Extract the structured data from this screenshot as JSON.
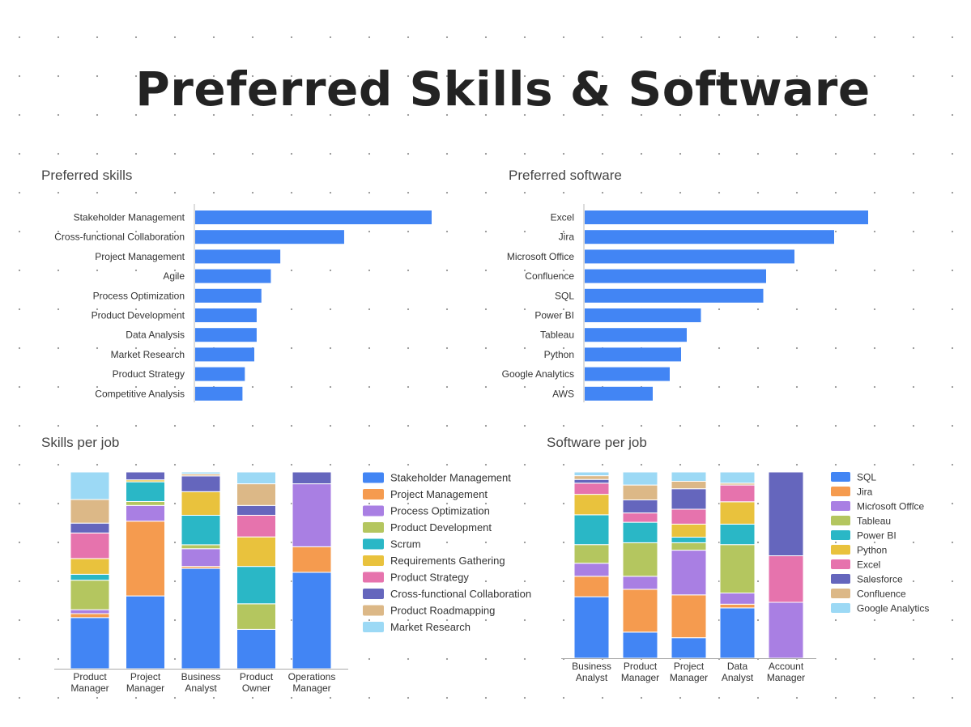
{
  "page": {
    "title": "Preferred Skills & Software"
  },
  "chart_data": [
    {
      "id": "skills",
      "type": "bar",
      "orientation": "horizontal",
      "title": "Preferred skills",
      "categories": [
        "Stakeholder Management",
        "Cross-functional Collaboration",
        "Project Management",
        "Agile",
        "Process Optimization",
        "Product Development",
        "Data Analysis",
        "Market Research",
        "Product Strategy",
        "Competitive Analysis"
      ],
      "values": [
        100,
        63,
        36,
        32,
        28,
        26,
        26,
        25,
        21,
        20
      ],
      "color": "#4285f4",
      "xlim": [
        0,
        100
      ]
    },
    {
      "id": "software",
      "type": "bar",
      "orientation": "horizontal",
      "title": "Preferred software",
      "categories": [
        "Excel",
        "Jira",
        "Microsoft Office",
        "Confluence",
        "SQL",
        "Power BI",
        "Tableau",
        "Python",
        "Google Analytics",
        "AWS"
      ],
      "values": [
        100,
        88,
        74,
        64,
        63,
        41,
        36,
        34,
        30,
        24
      ],
      "color": "#4285f4",
      "xlim": [
        0,
        100
      ]
    },
    {
      "id": "skills_per_job",
      "type": "bar",
      "stacked": true,
      "title": "Skills per job",
      "categories": [
        "Product Manager",
        "Project Manager",
        "Business Analyst",
        "Product Owner",
        "Operations Manager"
      ],
      "category_lines": [
        [
          "Product",
          "Manager"
        ],
        [
          "Project",
          "Manager"
        ],
        [
          "Business",
          "Analyst"
        ],
        [
          "Product",
          "Owner"
        ],
        [
          "Operations",
          "Manager"
        ]
      ],
      "ylim": [
        0,
        100
      ],
      "legend_position": "right",
      "series": [
        {
          "name": "Stakeholder Management",
          "color": "#4285f4",
          "values": [
            26,
            37,
            51,
            20,
            49
          ]
        },
        {
          "name": "Project Management",
          "color": "#f59b4f",
          "values": [
            2,
            38,
            1,
            0,
            13
          ]
        },
        {
          "name": "Process Optimization",
          "color": "#a97fe3",
          "values": [
            2,
            8,
            9,
            0,
            32
          ]
        },
        {
          "name": "Product Development",
          "color": "#b4c65f",
          "values": [
            15,
            2,
            2,
            13,
            0
          ]
        },
        {
          "name": "Scrum",
          "color": "#2ab7c6",
          "values": [
            3,
            10,
            15,
            19,
            0
          ]
        },
        {
          "name": "Requirements Gathering",
          "color": "#e9c23d",
          "values": [
            8,
            1,
            12,
            15,
            0
          ]
        },
        {
          "name": "Product Strategy",
          "color": "#e673ad",
          "values": [
            13,
            0,
            0,
            11,
            0
          ]
        },
        {
          "name": "Cross-functional Collaboration",
          "color": "#6566bd",
          "values": [
            5,
            4,
            8,
            5,
            6
          ]
        },
        {
          "name": "Product Roadmapping",
          "color": "#dcb887",
          "values": [
            12,
            0,
            1,
            11,
            0
          ]
        },
        {
          "name": "Market Research",
          "color": "#9cd9f5",
          "values": [
            14,
            0,
            1,
            6,
            0
          ]
        }
      ]
    },
    {
      "id": "software_per_job",
      "type": "bar",
      "stacked": true,
      "title": "Software per job",
      "categories": [
        "Business Analyst",
        "Product Manager",
        "Project Manager",
        "Data Analyst",
        "Account Manager"
      ],
      "category_lines": [
        [
          "Business",
          "Analyst"
        ],
        [
          "Product",
          "Manager"
        ],
        [
          "Project",
          "Manager"
        ],
        [
          "Data",
          "Analyst"
        ],
        [
          "Account",
          "Manager"
        ]
      ],
      "ylim": [
        0,
        100
      ],
      "legend_position": "right",
      "series": [
        {
          "name": "SQL",
          "color": "#4285f4",
          "values": [
            33,
            14,
            11,
            27,
            0
          ]
        },
        {
          "name": "Jira",
          "color": "#f59b4f",
          "values": [
            11,
            23,
            23,
            2,
            0
          ]
        },
        {
          "name": "Microsoft Office",
          "color": "#a97fe3",
          "values": [
            7,
            7,
            24,
            6,
            30
          ]
        },
        {
          "name": "Tableau",
          "color": "#b4c65f",
          "values": [
            10,
            18,
            4,
            26,
            0
          ]
        },
        {
          "name": "Power BI",
          "color": "#2ab7c6",
          "values": [
            16,
            11,
            3,
            11,
            0
          ]
        },
        {
          "name": "Python",
          "color": "#e9c23d",
          "values": [
            11,
            0,
            7,
            12,
            0
          ]
        },
        {
          "name": "Excel",
          "color": "#e673ad",
          "values": [
            6,
            5,
            8,
            9,
            25
          ]
        },
        {
          "name": "Salesforce",
          "color": "#6566bd",
          "values": [
            2,
            7,
            11,
            0,
            45
          ]
        },
        {
          "name": "Confluence",
          "color": "#dcb887",
          "values": [
            2,
            8,
            4,
            1,
            0
          ]
        },
        {
          "name": "Google Analytics",
          "color": "#9cd9f5",
          "values": [
            2,
            7,
            5,
            6,
            0
          ]
        }
      ]
    }
  ]
}
